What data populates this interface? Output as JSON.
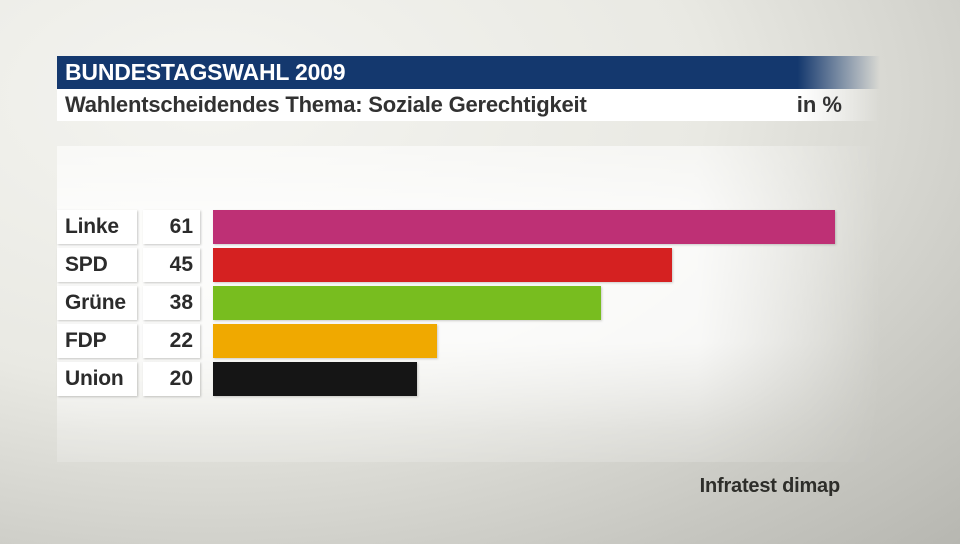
{
  "header": {
    "title": "BUNDESTAGSWAHL 2009",
    "subtitle": "Wahlentscheidendes Thema: Soziale Gerechtigkeit",
    "unit_label": "in %"
  },
  "source": "Infratest dimap",
  "colors": {
    "band_blue": "#14386e",
    "band_white": "#ffffff",
    "text_dark": "#2b2b2b"
  },
  "chart_data": {
    "type": "bar",
    "orientation": "horizontal",
    "title": "Wahlentscheidendes Thema: Soziale Gerechtigkeit",
    "unit": "%",
    "categories": [
      "Linke",
      "SPD",
      "Grüne",
      "FDP",
      "Union"
    ],
    "values": [
      61,
      45,
      38,
      22,
      20
    ],
    "colors": [
      "#be3075",
      "#d52121",
      "#78bd1f",
      "#f0a900",
      "#151515"
    ],
    "xlim": [
      0,
      65
    ],
    "grid": false,
    "legend": false,
    "value_labels_position": "left-boxes"
  }
}
